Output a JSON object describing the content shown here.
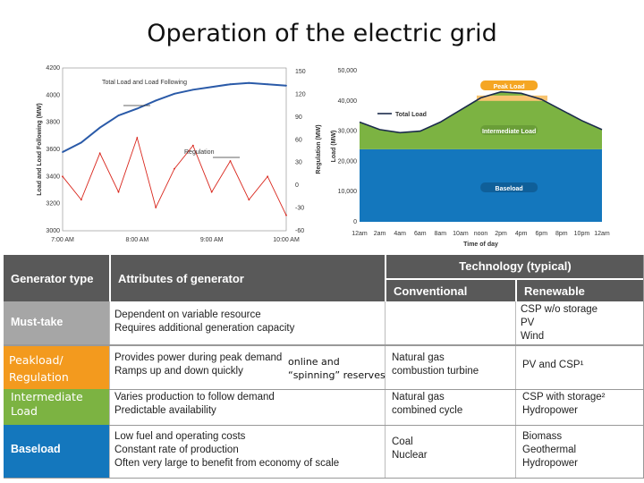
{
  "title": "Operation of the electric grid",
  "chart_data": [
    {
      "type": "line",
      "x_ticks": [
        "7:00 AM",
        "8:00 AM",
        "9:00 AM",
        "10:00 AM"
      ],
      "ylabel": "Load and Load Following (MW)",
      "y2label": "Regulation (MW)",
      "y_ticks": [
        "4200",
        "4000",
        "3800",
        "3600",
        "3400",
        "3200",
        "3000"
      ],
      "y2_ticks": [
        "150",
        "120",
        "90",
        "60",
        "30",
        "0",
        "-30",
        "-60"
      ],
      "ylim": [
        3000,
        4200
      ],
      "y2lim": [
        -60,
        150
      ],
      "series": [
        {
          "name": "Total Load and Load Following",
          "color": "#2a5aa8",
          "axis": "left",
          "x": [
            "7:00",
            "7:15",
            "7:30",
            "7:45",
            "8:00",
            "8:15",
            "8:30",
            "8:45",
            "9:00",
            "9:15",
            "9:30",
            "9:45",
            "10:00"
          ],
          "values": [
            3580,
            3650,
            3760,
            3850,
            3900,
            3960,
            4010,
            4040,
            4060,
            4080,
            4090,
            4080,
            4070
          ]
        },
        {
          "name": "Regulation",
          "color": "#d9261c",
          "axis": "right",
          "x": [
            "7:00",
            "7:15",
            "7:30",
            "7:45",
            "8:00",
            "8:15",
            "8:30",
            "8:45",
            "9:00",
            "9:15",
            "9:30",
            "9:45",
            "10:00"
          ],
          "values": [
            10,
            -20,
            40,
            -10,
            60,
            -30,
            20,
            50,
            -10,
            30,
            -20,
            10,
            -40
          ]
        }
      ],
      "annotations": [
        "Total Load and Load Following",
        "Regulation"
      ]
    },
    {
      "type": "area",
      "ylabel": "Load (MW)",
      "y_ticks": [
        "50,000",
        "40,000",
        "30,000",
        "20,000",
        "10,000",
        "0"
      ],
      "ylim": [
        0,
        50000
      ],
      "x_ticks": [
        "12am",
        "2am",
        "4am",
        "6am",
        "8am",
        "10am",
        "noon",
        "2pm",
        "4pm",
        "6pm",
        "8pm",
        "10pm",
        "12am"
      ],
      "xlabel": "Time of day",
      "legend": [
        "Total Load"
      ],
      "layers": [
        {
          "name": "Baseload",
          "color": "#1477bd",
          "value": 24000
        },
        {
          "name": "Intermediate Load",
          "color": "#7cb342"
        },
        {
          "name": "Peak Load",
          "color": "#f5a623"
        }
      ],
      "total_load": {
        "x": [
          "12am",
          "2am",
          "4am",
          "6am",
          "8am",
          "10am",
          "noon",
          "2pm",
          "4pm",
          "6pm",
          "8pm",
          "10pm",
          "12am"
        ],
        "values": [
          33000,
          30500,
          29500,
          30000,
          33000,
          37000,
          41000,
          43000,
          42500,
          40500,
          37000,
          33500,
          30500
        ]
      }
    }
  ],
  "table": {
    "headers": {
      "generator_type": "Generator type",
      "attributes": "Attributes of generator",
      "technology": "Technology (typical)",
      "conventional": "Conventional",
      "renewable": "Renewable"
    },
    "rows": [
      {
        "type": "Must-take",
        "color": "#a6a6a6",
        "attributes": [
          "Dependent on variable resource",
          "Requires additional generation capacity"
        ],
        "conventional": [],
        "renewable": [
          "CSP w/o storage",
          "PV",
          "Wind"
        ]
      },
      {
        "type": "Peakload/ Regulation",
        "color": "#f39a1e",
        "attributes": [
          "Provides power during peak demand",
          "Ramps up and down quickly"
        ],
        "conventional": [
          "Natural gas",
          "combustion turbine"
        ],
        "renewable": [
          "PV and CSP¹"
        ]
      },
      {
        "type": "Intermediate Load",
        "color": "#7cb342",
        "attributes": [
          "Varies production to follow demand",
          "Predictable availability"
        ],
        "conventional": [
          "Natural gas",
          "combined cycle"
        ],
        "renewable": [
          "CSP with storage²",
          "Hydropower"
        ]
      },
      {
        "type": "Baseload",
        "color": "#1477bd",
        "attributes": [
          "Low fuel and operating costs",
          "Constant rate of production",
          "Often very large to benefit from economy of scale"
        ],
        "conventional": [
          "Coal",
          "Nuclear"
        ],
        "renewable": [
          "Biomass",
          "Geothermal",
          "Hydropower"
        ]
      }
    ],
    "overlay_note": [
      "online and",
      "“spinning” reserves"
    ]
  }
}
